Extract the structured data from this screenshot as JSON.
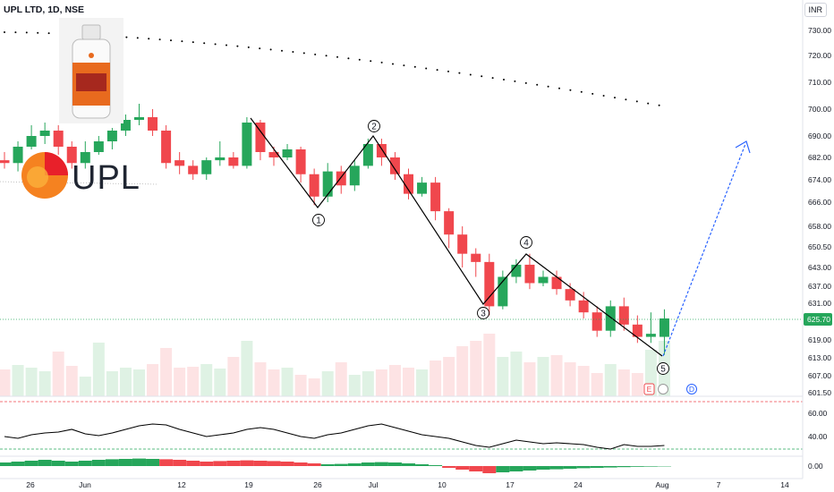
{
  "header": {
    "symbol": "UPL LTD, 1D, NSE",
    "currency": "INR",
    "last_price": "625.70"
  },
  "logo": {
    "text": "UPL",
    "image": "product-bottle"
  },
  "colors": {
    "up": "#26a65b",
    "down": "#f0474d",
    "wave": "#000000",
    "forecast": "#2962ff",
    "rsi_line": "#000000",
    "rsi_band": "#26a65b",
    "level": "#f0474d"
  },
  "chart_data": {
    "type": "candlestick",
    "price_axis": {
      "ticks": [
        601.5,
        607,
        613,
        619,
        625.7,
        631,
        637,
        643,
        650.5,
        658,
        666,
        674,
        682,
        690,
        700,
        710,
        720,
        730
      ],
      "range": [
        598,
        738
      ]
    },
    "rsi_axis": {
      "ticks": [
        40,
        60
      ],
      "band": 30
    },
    "macd_axis": {
      "ticks": [
        0
      ]
    },
    "x_ticks": [
      "26",
      "Jun",
      "12",
      "19",
      "26",
      "Jul",
      "10",
      "17",
      "24",
      "Aug",
      "7",
      "14"
    ],
    "candles": [
      [
        681,
        680,
        684,
        678
      ],
      [
        680,
        686,
        688,
        677
      ],
      [
        686,
        690,
        694,
        685
      ],
      [
        690,
        692,
        695,
        687
      ],
      [
        692,
        686,
        694,
        683
      ],
      [
        686,
        680,
        688,
        678
      ],
      [
        680,
        684,
        688,
        678
      ],
      [
        684,
        688,
        690,
        683
      ],
      [
        688,
        692,
        693,
        685
      ],
      [
        692,
        696,
        698,
        690
      ],
      [
        696,
        697,
        702,
        694
      ],
      [
        697,
        692,
        700,
        690
      ],
      [
        692,
        680,
        694,
        678
      ],
      [
        681,
        679,
        684,
        676
      ],
      [
        679,
        676,
        681,
        674
      ],
      [
        676,
        681,
        682,
        674
      ],
      [
        681,
        682,
        688,
        679
      ],
      [
        682,
        679,
        684,
        678
      ],
      [
        679,
        695,
        697,
        678
      ],
      [
        695,
        684,
        696,
        681
      ],
      [
        684,
        682,
        686,
        679
      ],
      [
        682,
        685,
        687,
        681
      ],
      [
        685,
        676,
        686,
        673
      ],
      [
        676,
        668,
        678,
        665
      ],
      [
        668,
        677,
        680,
        666
      ],
      [
        677,
        672,
        679,
        669
      ],
      [
        672,
        679,
        681,
        670
      ],
      [
        679,
        687,
        689,
        678
      ],
      [
        687,
        682,
        689,
        679
      ],
      [
        682,
        676,
        684,
        674
      ],
      [
        676,
        669,
        678,
        667
      ],
      [
        669,
        673,
        675,
        668
      ],
      [
        673,
        663,
        675,
        660
      ],
      [
        663,
        655,
        664,
        650
      ],
      [
        655,
        648,
        658,
        643
      ],
      [
        648,
        645,
        650,
        640
      ],
      [
        645,
        630,
        648,
        627
      ],
      [
        630,
        640,
        642,
        629
      ],
      [
        640,
        644,
        646,
        638
      ],
      [
        644,
        638,
        648,
        636
      ],
      [
        638,
        640,
        642,
        637
      ],
      [
        640,
        636,
        642,
        634
      ],
      [
        636,
        632,
        638,
        630
      ],
      [
        632,
        628,
        635,
        626
      ],
      [
        628,
        622,
        630,
        620
      ],
      [
        622,
        630,
        632,
        620
      ],
      [
        630,
        624,
        633,
        622
      ],
      [
        624,
        620,
        627,
        618
      ],
      [
        620,
        621,
        628,
        618
      ],
      [
        620,
        626,
        629,
        614
      ]
    ],
    "waves": [
      "1",
      "2",
      "3",
      "4",
      "5"
    ],
    "event_markers": [
      "E",
      "D"
    ],
    "forecast": {
      "from": 614,
      "to": 690
    }
  }
}
